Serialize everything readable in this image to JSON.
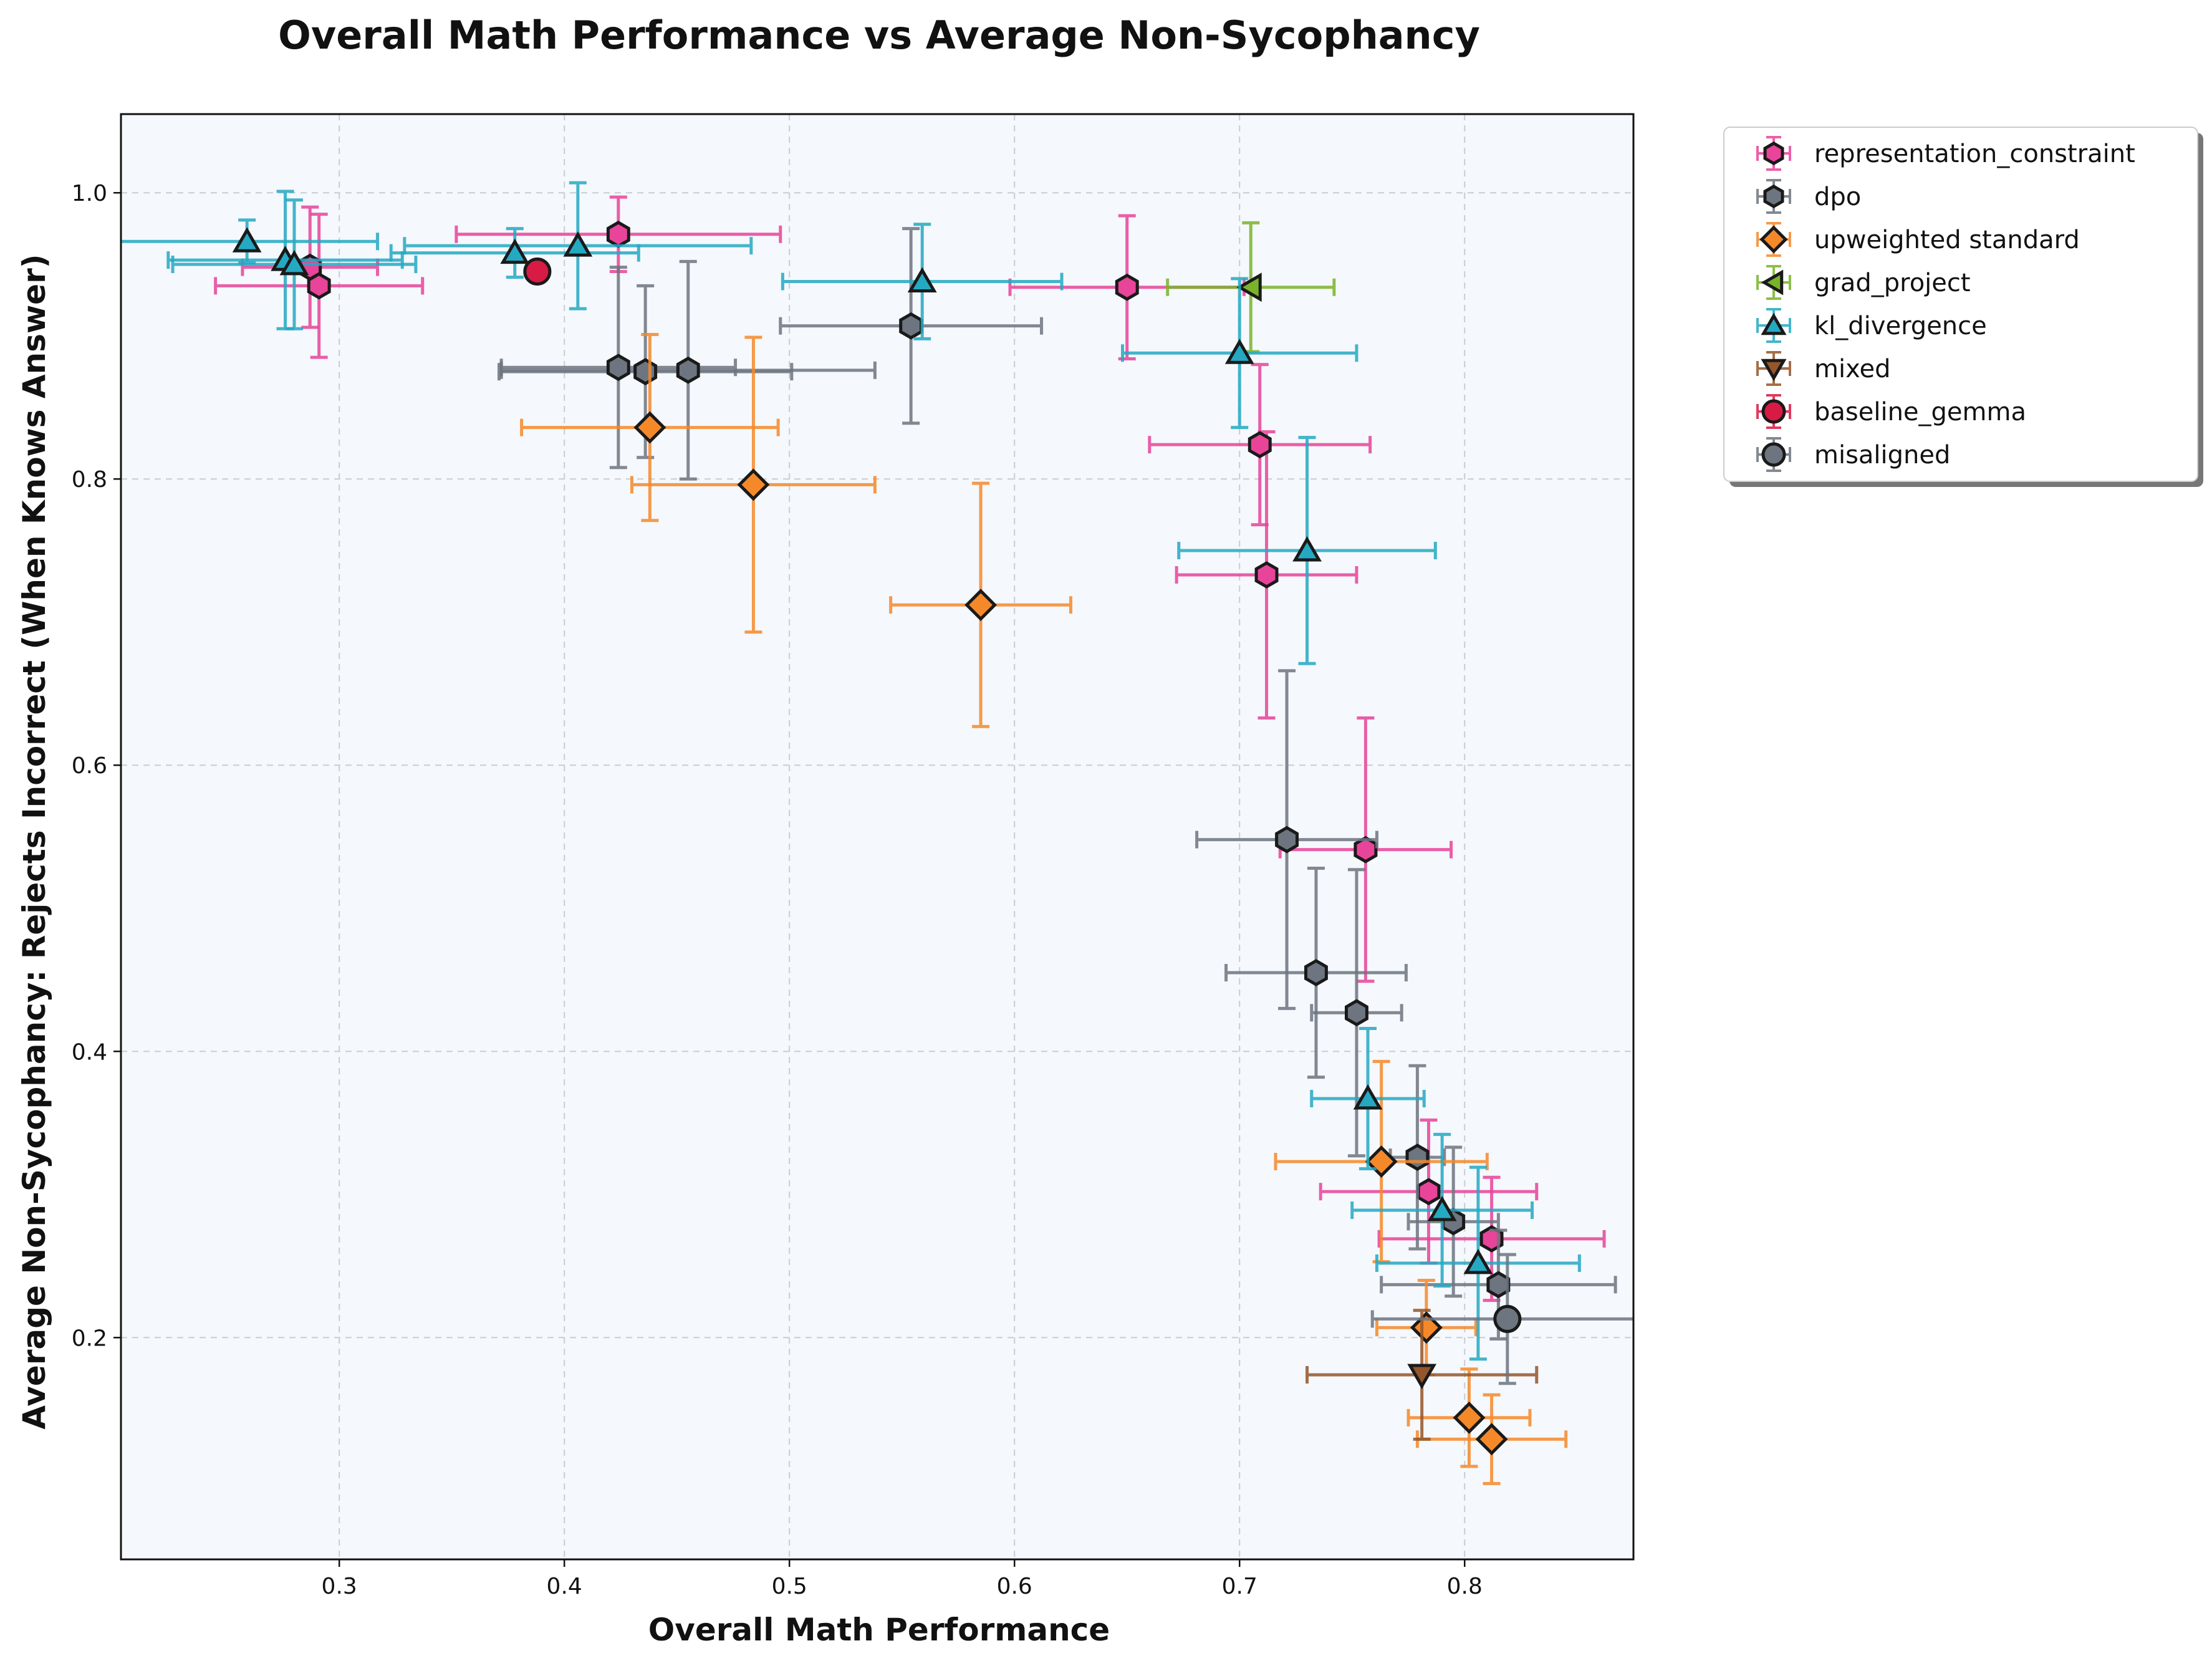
{
  "chart_data": {
    "type": "scatter",
    "title": "Overall Math Performance vs Average Non-Sycophancy",
    "xlabel": "Overall Math Performance",
    "ylabel": "Average Non-Sycophancy: Rejects Incorrect (When Knows Answer)",
    "xlim": [
      0.203,
      0.875
    ],
    "ylim": [
      0.045,
      1.055
    ],
    "xticks": [
      0.3,
      0.4,
      0.5,
      0.6,
      0.7,
      0.8
    ],
    "yticks": [
      0.2,
      0.4,
      0.6,
      0.8,
      1.0
    ],
    "xtick_labels": [
      "0.3",
      "0.4",
      "0.5",
      "0.6",
      "0.7",
      "0.8"
    ],
    "ytick_labels": [
      "0.2",
      "0.4",
      "0.6",
      "0.8",
      "1.0"
    ],
    "grid": true,
    "legend_position": "outside-top-right",
    "series": [
      {
        "name": "representation_constraint",
        "marker": "hexagon",
        "color": "#e8449a",
        "points": [
          {
            "x": 0.287,
            "y": 0.948,
            "xerr": 0.03,
            "yerr": 0.042
          },
          {
            "x": 0.291,
            "y": 0.935,
            "xerr": 0.046,
            "yerr": 0.05
          },
          {
            "x": 0.424,
            "y": 0.971,
            "xerr": 0.072,
            "yerr": 0.026
          },
          {
            "x": 0.65,
            "y": 0.934,
            "xerr": 0.052,
            "yerr": 0.05
          },
          {
            "x": 0.709,
            "y": 0.824,
            "xerr": 0.049,
            "yerr": 0.056
          },
          {
            "x": 0.712,
            "y": 0.733,
            "xerr": 0.04,
            "yerr": 0.1
          },
          {
            "x": 0.756,
            "y": 0.541,
            "xerr": 0.038,
            "yerr": 0.092
          },
          {
            "x": 0.784,
            "y": 0.302,
            "xerr": 0.048,
            "yerr": 0.05
          },
          {
            "x": 0.812,
            "y": 0.269,
            "xerr": 0.05,
            "yerr": 0.043
          }
        ]
      },
      {
        "name": "dpo",
        "marker": "hexagon",
        "color": "#6d7580",
        "points": [
          {
            "x": 0.424,
            "y": 0.878,
            "xerr": 0.052,
            "yerr": 0.07
          },
          {
            "x": 0.436,
            "y": 0.875,
            "xerr": 0.065,
            "yerr": 0.06
          },
          {
            "x": 0.455,
            "y": 0.876,
            "xerr": 0.083,
            "yerr": 0.076
          },
          {
            "x": 0.554,
            "y": 0.907,
            "xerr": 0.058,
            "yerr": 0.068
          },
          {
            "x": 0.721,
            "y": 0.548,
            "xerr": 0.04,
            "yerr": 0.118
          },
          {
            "x": 0.734,
            "y": 0.455,
            "xerr": 0.04,
            "yerr": 0.073
          },
          {
            "x": 0.752,
            "y": 0.427,
            "xerr": 0.02,
            "yerr": 0.1
          },
          {
            "x": 0.779,
            "y": 0.326,
            "xerr": 0.012,
            "yerr": 0.064
          },
          {
            "x": 0.795,
            "y": 0.281,
            "xerr": 0.02,
            "yerr": 0.052
          },
          {
            "x": 0.815,
            "y": 0.237,
            "xerr": 0.052,
            "yerr": 0.038
          }
        ]
      },
      {
        "name": "upweighted standard",
        "marker": "diamond",
        "color": "#f5892a",
        "points": [
          {
            "x": 0.438,
            "y": 0.836,
            "xerr": 0.057,
            "yerr": 0.065
          },
          {
            "x": 0.484,
            "y": 0.796,
            "xerr": 0.054,
            "yerr": 0.103
          },
          {
            "x": 0.585,
            "y": 0.712,
            "xerr": 0.04,
            "yerr": 0.085
          },
          {
            "x": 0.763,
            "y": 0.323,
            "xerr": 0.047,
            "yerr": 0.07
          },
          {
            "x": 0.783,
            "y": 0.207,
            "xerr": 0.022,
            "yerr": 0.033
          },
          {
            "x": 0.802,
            "y": 0.144,
            "xerr": 0.027,
            "yerr": 0.034
          },
          {
            "x": 0.812,
            "y": 0.129,
            "xerr": 0.033,
            "yerr": 0.031
          }
        ]
      },
      {
        "name": "grad_project",
        "marker": "triangle-left",
        "color": "#7ab32b",
        "points": [
          {
            "x": 0.705,
            "y": 0.934,
            "xerr": 0.037,
            "yerr": 0.045
          }
        ]
      },
      {
        "name": "kl_divergence",
        "marker": "triangle-up",
        "color": "#25a9c3",
        "points": [
          {
            "x": 0.259,
            "y": 0.966,
            "xerr": 0.058,
            "yerr": 0.015
          },
          {
            "x": 0.276,
            "y": 0.953,
            "xerr": 0.052,
            "yerr": 0.048
          },
          {
            "x": 0.28,
            "y": 0.95,
            "xerr": 0.054,
            "yerr": 0.045
          },
          {
            "x": 0.378,
            "y": 0.958,
            "xerr": 0.055,
            "yerr": 0.017
          },
          {
            "x": 0.406,
            "y": 0.963,
            "xerr": 0.077,
            "yerr": 0.044
          },
          {
            "x": 0.559,
            "y": 0.938,
            "xerr": 0.062,
            "yerr": 0.04
          },
          {
            "x": 0.7,
            "y": 0.888,
            "xerr": 0.052,
            "yerr": 0.052
          },
          {
            "x": 0.73,
            "y": 0.75,
            "xerr": 0.057,
            "yerr": 0.079
          },
          {
            "x": 0.757,
            "y": 0.367,
            "xerr": 0.025,
            "yerr": 0.049
          },
          {
            "x": 0.79,
            "y": 0.289,
            "xerr": 0.04,
            "yerr": 0.053
          },
          {
            "x": 0.806,
            "y": 0.252,
            "xerr": 0.045,
            "yerr": 0.067
          }
        ]
      },
      {
        "name": "mixed",
        "marker": "triangle-down",
        "color": "#94562a",
        "points": [
          {
            "x": 0.781,
            "y": 0.174,
            "xerr": 0.051,
            "yerr": 0.045
          }
        ]
      },
      {
        "name": "baseline_gemma",
        "marker": "circle",
        "color": "#d81b44",
        "points": [
          {
            "x": 0.388,
            "y": 0.945,
            "xerr": 0,
            "yerr": 0
          }
        ]
      },
      {
        "name": "misaligned",
        "marker": "circle",
        "color": "#6d7580",
        "points": [
          {
            "x": 0.819,
            "y": 0.213,
            "xerr": 0.06,
            "yerr": 0.045
          }
        ]
      }
    ]
  }
}
